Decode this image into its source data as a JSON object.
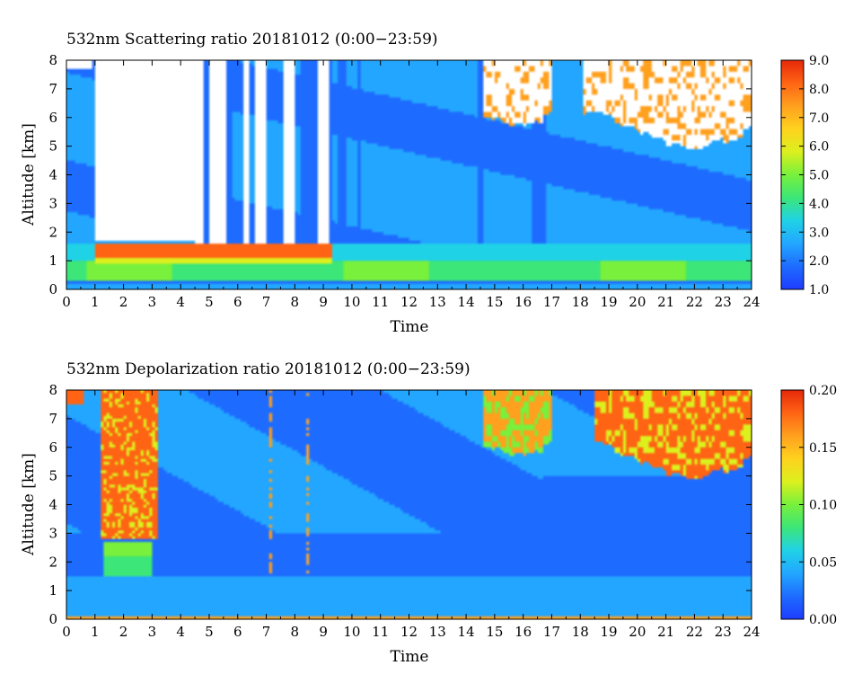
{
  "colors": {
    "colorscale": [
      "#1e3cff",
      "#1e6cff",
      "#22a6ff",
      "#20d2e6",
      "#3ce678",
      "#78f03c",
      "#dcf01e",
      "#ffd21e",
      "#ffa01e",
      "#ff6414",
      "#e6280a"
    ],
    "cloud": "#ffffff",
    "frame": "#000000"
  },
  "chart_data": [
    {
      "type": "heatmap",
      "title": "532nm Scattering ratio  20181012 (0:00−23:59)",
      "xlabel": "Time",
      "ylabel": "Altitude [km]",
      "xlim": [
        0,
        24
      ],
      "ylim": [
        0,
        8
      ],
      "x_ticks": [
        "0",
        "1",
        "2",
        "3",
        "4",
        "5",
        "6",
        "7",
        "8",
        "9",
        "10",
        "11",
        "12",
        "13",
        "14",
        "15",
        "16",
        "17",
        "18",
        "19",
        "20",
        "21",
        "22",
        "23",
        "24"
      ],
      "y_ticks": [
        "0",
        "1",
        "2",
        "3",
        "4",
        "5",
        "6",
        "7",
        "8"
      ],
      "colorbar": {
        "min": 1.0,
        "max": 9.0,
        "labels": [
          "1.0",
          "2.0",
          "3.0",
          "4.0",
          "5.0",
          "6.0",
          "7.0",
          "8.0",
          "9.0"
        ]
      },
      "features": [
        {
          "name": "surface-layer",
          "x": [
            0,
            24
          ],
          "y": [
            0,
            0.3
          ],
          "value": 2.2
        },
        {
          "name": "boundary-layer",
          "x": [
            0,
            24
          ],
          "y": [
            0.3,
            1.0
          ],
          "value": 4.4
        },
        {
          "name": "boundary-layer-top",
          "x": [
            0,
            24
          ],
          "y": [
            1.0,
            1.6
          ],
          "value": 3.4
        },
        {
          "name": "cloud-base-band",
          "x": [
            1.0,
            9.3
          ],
          "y": [
            1.1,
            1.5
          ],
          "value": 8.2
        },
        {
          "name": "saturated-cloud",
          "x": [
            1.0,
            4.5
          ],
          "y": [
            1.6,
            8.0
          ],
          "value": 9.0
        },
        {
          "name": "upper-cloud-left",
          "x": [
            14.5,
            17.0
          ],
          "y": [
            5.8,
            8.0
          ],
          "value": 7.5
        },
        {
          "name": "upper-cloud-right",
          "x": [
            18.0,
            24.0
          ],
          "y": [
            5.2,
            8.0
          ],
          "value": 8.0
        }
      ]
    },
    {
      "type": "heatmap",
      "title": "532nm Depolarization ratio  20181012 (0:00−23:59)",
      "xlabel": "Time",
      "ylabel": "Altitude [km]",
      "xlim": [
        0,
        24
      ],
      "ylim": [
        0,
        8
      ],
      "x_ticks": [
        "0",
        "1",
        "2",
        "3",
        "4",
        "5",
        "6",
        "7",
        "8",
        "9",
        "10",
        "11",
        "12",
        "13",
        "14",
        "15",
        "16",
        "17",
        "18",
        "19",
        "20",
        "21",
        "22",
        "23",
        "24"
      ],
      "y_ticks": [
        "0",
        "1",
        "2",
        "3",
        "4",
        "5",
        "6",
        "7",
        "8"
      ],
      "colorbar": {
        "min": 0.0,
        "max": 0.2,
        "labels": [
          "0.00",
          "0.05",
          "0.10",
          "0.15",
          "0.20"
        ]
      },
      "features": [
        {
          "name": "surface-line",
          "x": [
            0,
            24
          ],
          "y": [
            0,
            0.1
          ],
          "value": 0.15
        },
        {
          "name": "boundary-layer",
          "x": [
            0,
            24
          ],
          "y": [
            0.1,
            1.5
          ],
          "value": 0.03
        },
        {
          "name": "ice-cloud",
          "x": [
            1.2,
            3.2
          ],
          "y": [
            2.8,
            8.0
          ],
          "value": 0.17
        },
        {
          "name": "cloud-base-layer",
          "x": [
            1.3,
            3.0
          ],
          "y": [
            1.5,
            2.6
          ],
          "value": 0.09
        },
        {
          "name": "upper-cloud-left",
          "x": [
            14.5,
            17.0
          ],
          "y": [
            5.8,
            8.0
          ],
          "value": 0.12
        },
        {
          "name": "upper-cloud-right",
          "x": [
            18.5,
            24.0
          ],
          "y": [
            5.2,
            8.0
          ],
          "value": 0.15
        }
      ]
    }
  ]
}
